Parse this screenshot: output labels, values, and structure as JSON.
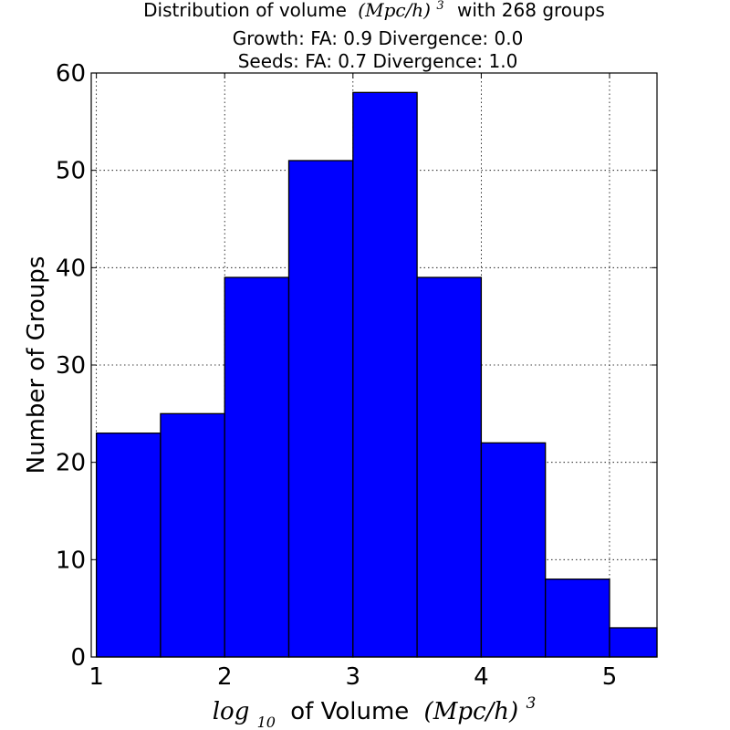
{
  "chart_data": {
    "type": "bar",
    "title": {
      "line1_prefix": "Distribution of volume",
      "line1_math": "(Mpc/h)",
      "line1_exp": "3",
      "line1_suffix": "with 268 groups",
      "line2": "Growth: FA: 0.9 Divergence: 0.0",
      "line3": "Seeds: FA: 0.7 Divergence: 1.0"
    },
    "xlabel": {
      "log": "log",
      "log_sub": "10",
      "text": "of Volume",
      "math": "(Mpc/h)",
      "exp": "3"
    },
    "ylabel": "Number of Groups",
    "xlim": [
      0.96,
      5.37
    ],
    "ylim": [
      0,
      60
    ],
    "xticks": [
      1,
      2,
      3,
      4,
      5
    ],
    "yticks": [
      0,
      10,
      20,
      30,
      40,
      50,
      60
    ],
    "grid": true,
    "bins": [
      {
        "x0": 1.0,
        "x1": 1.5,
        "value": 23
      },
      {
        "x0": 1.5,
        "x1": 2.0,
        "value": 25
      },
      {
        "x0": 2.0,
        "x1": 2.5,
        "value": 39
      },
      {
        "x0": 2.5,
        "x1": 3.0,
        "value": 51
      },
      {
        "x0": 3.0,
        "x1": 3.5,
        "value": 58
      },
      {
        "x0": 3.5,
        "x1": 4.0,
        "value": 39
      },
      {
        "x0": 4.0,
        "x1": 4.5,
        "value": 22
      },
      {
        "x0": 4.5,
        "x1": 5.0,
        "value": 8
      },
      {
        "x0": 5.0,
        "x1": 5.37,
        "value": 3
      }
    ],
    "bar_color": "#0000ff"
  }
}
